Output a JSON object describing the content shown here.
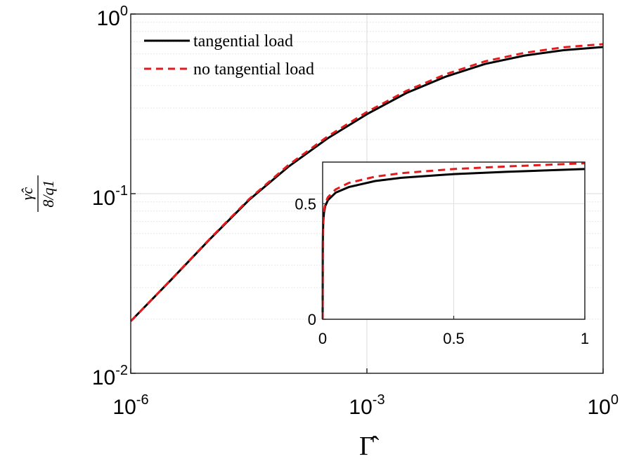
{
  "chart_data": {
    "type": "line",
    "xscale": "log",
    "yscale": "log",
    "xlim": [
      1e-06,
      1
    ],
    "ylim": [
      0.01,
      1
    ],
    "grid": true,
    "legend_position": "top-left",
    "xlabel": "Γ̂",
    "ylabel_numerator": "γ̂c",
    "ylabel_denominator": "8/q1",
    "x_ticks": [
      {
        "value": 1e-06,
        "base": "10",
        "exp": "-6"
      },
      {
        "value": 0.001,
        "base": "10",
        "exp": "-3"
      },
      {
        "value": 1,
        "base": "10",
        "exp": "0"
      }
    ],
    "y_ticks": [
      {
        "value": 0.01,
        "base": "10",
        "exp": "-2"
      },
      {
        "value": 0.1,
        "base": "10",
        "exp": "-1"
      },
      {
        "value": 1,
        "base": "10",
        "exp": "0"
      }
    ],
    "series": [
      {
        "name": "tangential load",
        "color": "#000000",
        "style": "solid",
        "x": [
          1e-06,
          3.16e-06,
          1e-05,
          3.16e-05,
          0.0001,
          0.000316,
          0.001,
          0.00316,
          0.01,
          0.0316,
          0.1,
          0.316,
          1
        ],
        "y": [
          0.0195,
          0.0327,
          0.0555,
          0.092,
          0.141,
          0.203,
          0.277,
          0.363,
          0.448,
          0.527,
          0.587,
          0.629,
          0.655
        ]
      },
      {
        "name": "no tangential load",
        "color": "#e41a1c",
        "style": "dashed",
        "x": [
          1e-06,
          3.16e-06,
          1e-05,
          3.16e-05,
          0.0001,
          0.000316,
          0.001,
          0.00316,
          0.01,
          0.0316,
          0.1,
          0.316,
          1
        ],
        "y": [
          0.0195,
          0.0328,
          0.0558,
          0.093,
          0.144,
          0.208,
          0.285,
          0.373,
          0.462,
          0.545,
          0.608,
          0.653,
          0.68
        ]
      }
    ],
    "inset": {
      "type": "line",
      "xscale": "linear",
      "yscale": "linear",
      "xlim": [
        0,
        1
      ],
      "ylim": [
        0,
        0.68
      ],
      "grid": true,
      "x_ticks": [
        "0",
        "0.5",
        "1"
      ],
      "y_ticks": [
        "0",
        "0.5"
      ],
      "series": [
        {
          "name": "tangential load",
          "x": [
            0,
            0.0005,
            0.001,
            0.002,
            0.005,
            0.01,
            0.02,
            0.05,
            0.1,
            0.2,
            0.3,
            0.5,
            0.7,
            1.0
          ],
          "y": [
            0,
            0.3,
            0.36,
            0.41,
            0.46,
            0.49,
            0.515,
            0.548,
            0.572,
            0.598,
            0.612,
            0.628,
            0.638,
            0.65
          ]
        },
        {
          "name": "no tangential load",
          "x": [
            0,
            0.0005,
            0.001,
            0.002,
            0.005,
            0.01,
            0.02,
            0.05,
            0.1,
            0.2,
            0.3,
            0.5,
            0.7,
            1.0
          ],
          "y": [
            0,
            0.3,
            0.37,
            0.42,
            0.47,
            0.5,
            0.528,
            0.562,
            0.59,
            0.617,
            0.632,
            0.65,
            0.661,
            0.675
          ]
        }
      ]
    }
  }
}
